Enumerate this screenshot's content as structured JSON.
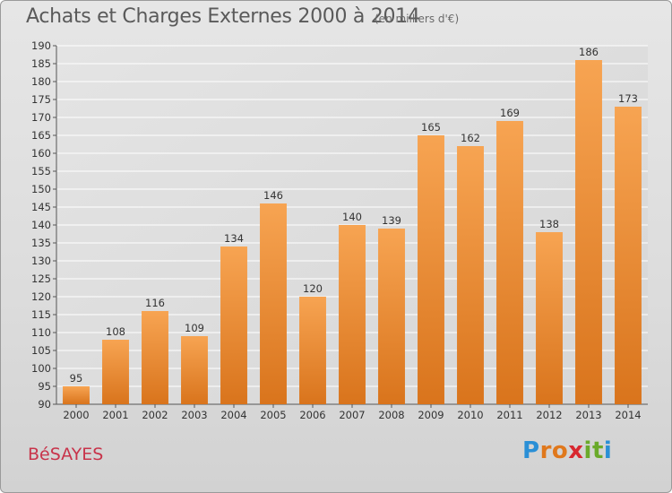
{
  "title": "Achats et Charges Externes 2000 à 2014",
  "unit": "(en milliers d'€)",
  "commune": "BéSAYES",
  "logo": {
    "letters": [
      "P",
      "r",
      "o",
      "x",
      "i",
      "t",
      "i"
    ],
    "colors": [
      "#2a8fd6",
      "#e0781c",
      "#e0781c",
      "#d8272f",
      "#6aaa2a",
      "#6aaa2a",
      "#2a8fd6"
    ]
  },
  "colors": {
    "bar_top": "#f7a452",
    "bar_bottom": "#d9741c",
    "grid": "#ffffff",
    "commune": "#c8334a"
  },
  "chart_data": {
    "type": "bar",
    "categories": [
      "2000",
      "2001",
      "2002",
      "2003",
      "2004",
      "2005",
      "2006",
      "2007",
      "2008",
      "2009",
      "2010",
      "2011",
      "2012",
      "2013",
      "2014"
    ],
    "values": [
      95,
      108,
      116,
      109,
      134,
      146,
      120,
      140,
      139,
      165,
      162,
      169,
      138,
      186,
      173
    ],
    "ylim": [
      90,
      190
    ],
    "yticks": [
      90,
      95,
      100,
      105,
      110,
      115,
      120,
      125,
      130,
      135,
      140,
      145,
      150,
      155,
      160,
      165,
      170,
      175,
      180,
      185,
      190
    ],
    "grid": true
  }
}
